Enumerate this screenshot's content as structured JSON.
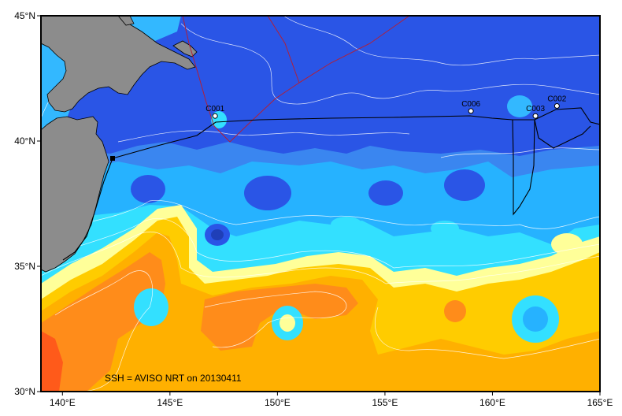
{
  "map": {
    "caption": "SSH = AVISO NRT on 20130411",
    "lon_range": [
      139,
      165
    ],
    "lat_range": [
      30,
      45
    ],
    "x_ticks": [
      {
        "value": 140,
        "label": "140°E"
      },
      {
        "value": 145,
        "label": "145°E"
      },
      {
        "value": 150,
        "label": "150°E"
      },
      {
        "value": 155,
        "label": "155°E"
      },
      {
        "value": 160,
        "label": "160°E"
      },
      {
        "value": 165,
        "label": "165°E"
      }
    ],
    "y_ticks": [
      {
        "value": 45,
        "label": "45°N"
      },
      {
        "value": 40,
        "label": "40°N"
      },
      {
        "value": 35,
        "label": "35°N"
      },
      {
        "value": 30,
        "label": "30°N"
      }
    ],
    "stations": [
      {
        "name": "C001",
        "lon": 147.1,
        "lat": 41.0
      },
      {
        "name": "C006",
        "lon": 159.0,
        "lat": 41.2
      },
      {
        "name": "C003",
        "lon": 162.0,
        "lat": 41.0
      },
      {
        "name": "C002",
        "lon": 163.0,
        "lat": 41.4
      }
    ],
    "colors": {
      "deep_blue": "#2a55e6",
      "mid_blue": "#3a86f0",
      "light_blue": "#26b2ff",
      "cyan": "#33e0ff",
      "pale_yellow": "#ffff99",
      "yellow": "#ffcc00",
      "orange_light": "#ffb000",
      "orange": "#ff8c1a",
      "red_orange": "#ff5a1a",
      "land": "#8c8c8c",
      "ship_track": "#000000",
      "boundary": "#b0203a"
    }
  }
}
